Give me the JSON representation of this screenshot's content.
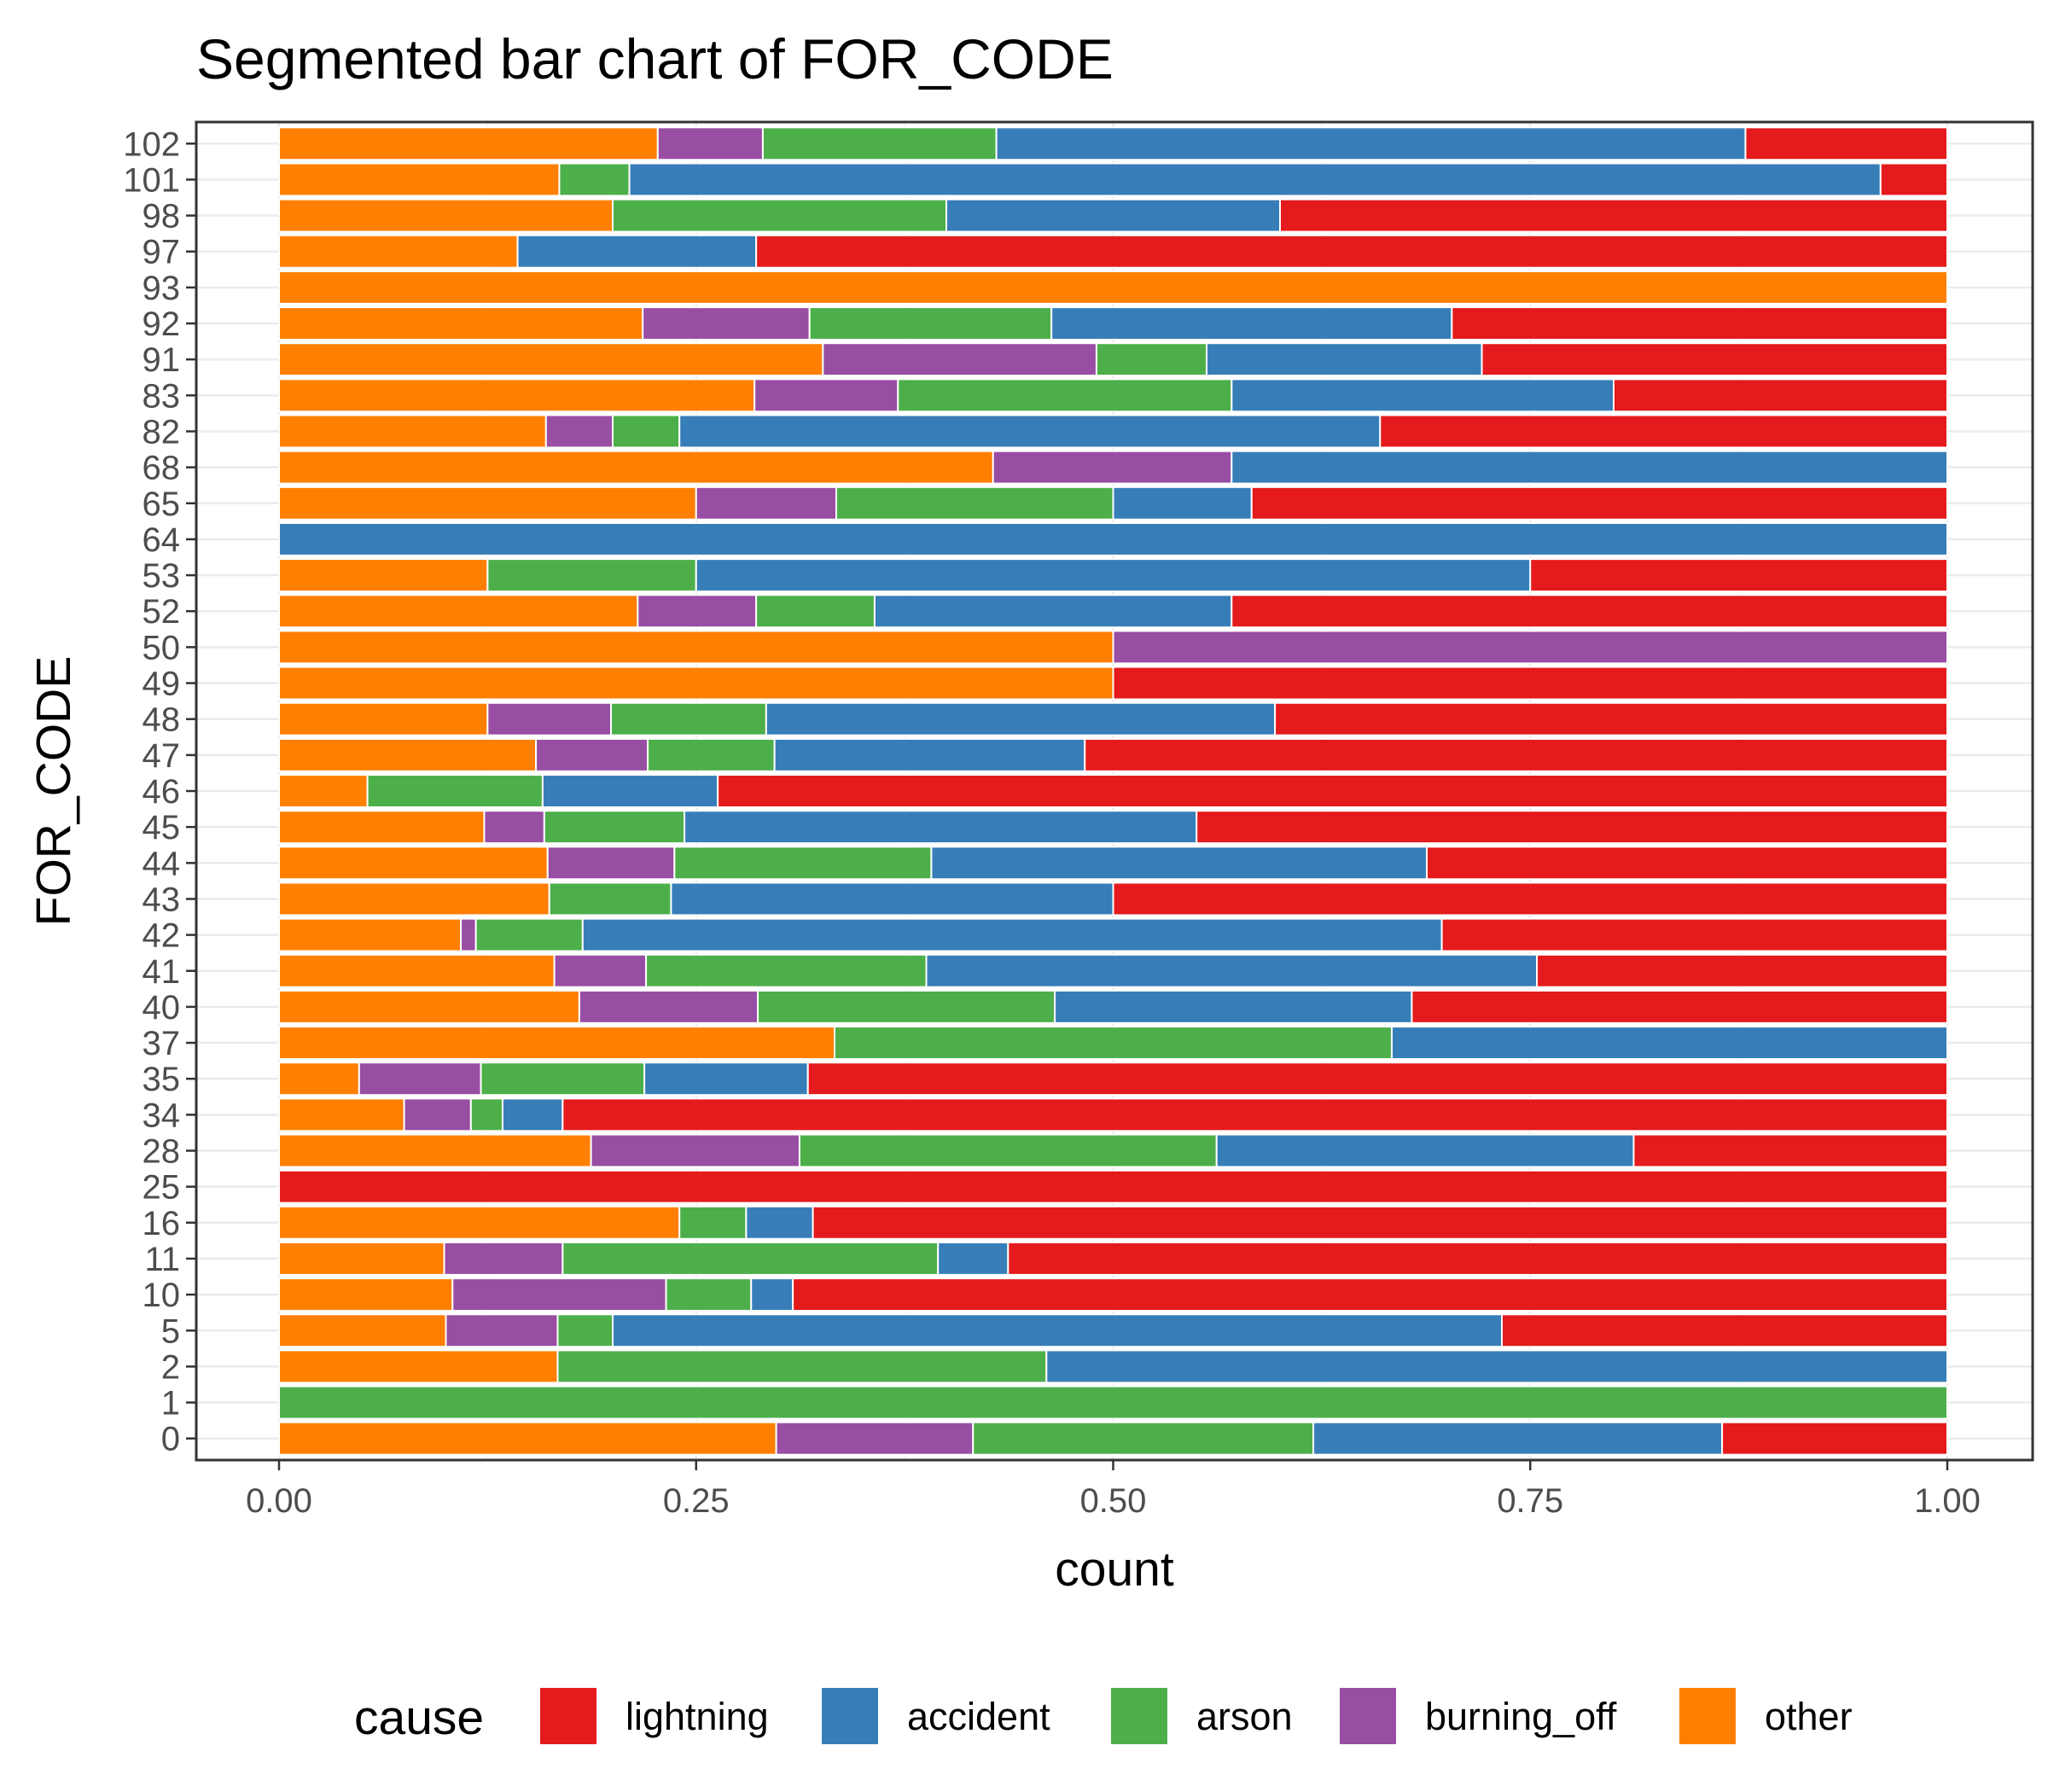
{
  "chart_data": {
    "type": "bar",
    "orientation": "horizontal",
    "stacked": "proportion",
    "title": "Segmented bar chart of FOR_CODE",
    "xlabel": "count",
    "ylabel": "FOR_CODE",
    "xlim": [
      0,
      1
    ],
    "x_ticks": [
      "0.00",
      "0.25",
      "0.50",
      "0.75",
      "1.00"
    ],
    "grid": true,
    "legend": {
      "title": "cause",
      "position": "bottom"
    },
    "categories": [
      "0",
      "1",
      "2",
      "5",
      "10",
      "11",
      "16",
      "25",
      "28",
      "34",
      "35",
      "37",
      "40",
      "41",
      "42",
      "43",
      "44",
      "45",
      "46",
      "47",
      "48",
      "49",
      "50",
      "52",
      "53",
      "64",
      "65",
      "68",
      "82",
      "83",
      "91",
      "92",
      "93",
      "97",
      "98",
      "101",
      "102"
    ],
    "stack_order": [
      "other",
      "burning_off",
      "arson",
      "accident",
      "lightning"
    ],
    "series": [
      {
        "name": "lightning",
        "color": "#e41a1c",
        "values": [
          0.135,
          0,
          0,
          0.267,
          0.692,
          0.563,
          0.68,
          1,
          0.188,
          0.83,
          0.683,
          0,
          0.321,
          0.246,
          0.303,
          0.5,
          0.312,
          0.45,
          0.737,
          0.517,
          0.403,
          0.5,
          0,
          0.429,
          0.25,
          0,
          0.417,
          0,
          0.34,
          0.2,
          0.279,
          0.297,
          0,
          0.714,
          0.4,
          0.04,
          0.121
        ]
      },
      {
        "name": "accident",
        "color": "#377eb8",
        "values": [
          0.245,
          0,
          0.54,
          0.533,
          0.025,
          0.042,
          0.04,
          0,
          0.25,
          0.036,
          0.098,
          0.333,
          0.214,
          0.366,
          0.515,
          0.265,
          0.297,
          0.307,
          0.105,
          0.186,
          0.305,
          0,
          0,
          0.214,
          0.5,
          1,
          0.083,
          0.429,
          0.42,
          0.229,
          0.165,
          0.24,
          0,
          0.143,
          0.2,
          0.75,
          0.449
        ]
      },
      {
        "name": "arson",
        "color": "#4daf4a",
        "values": [
          0.204,
          1,
          0.293,
          0.033,
          0.051,
          0.225,
          0.04,
          0,
          0.25,
          0.019,
          0.098,
          0.334,
          0.178,
          0.168,
          0.064,
          0.073,
          0.154,
          0.084,
          0.105,
          0.076,
          0.093,
          0,
          0,
          0.071,
          0.125,
          0,
          0.166,
          0,
          0.04,
          0.2,
          0.066,
          0.145,
          0,
          0,
          0.2,
          0.042,
          0.14
        ]
      },
      {
        "name": "burning_off",
        "color": "#984ea3",
        "values": [
          0.118,
          0,
          0,
          0.067,
          0.128,
          0.071,
          0,
          0,
          0.125,
          0.04,
          0.073,
          0,
          0.107,
          0.055,
          0.009,
          0,
          0.076,
          0.036,
          0,
          0.067,
          0.074,
          0,
          0.5,
          0.071,
          0,
          0,
          0.084,
          0.143,
          0.04,
          0.086,
          0.164,
          0.1,
          0,
          0,
          0,
          0,
          0.063
        ]
      },
      {
        "name": "other",
        "color": "#ff7f00",
        "values": [
          0.298,
          0,
          0.167,
          0.1,
          0.104,
          0.099,
          0.24,
          0,
          0.187,
          0.075,
          0.048,
          0.333,
          0.18,
          0.165,
          0.109,
          0.162,
          0.161,
          0.123,
          0.053,
          0.154,
          0.125,
          0.5,
          0.5,
          0.215,
          0.125,
          0,
          0.25,
          0.428,
          0.16,
          0.285,
          0.326,
          0.218,
          1,
          0.143,
          0.2,
          0.168,
          0.227
        ]
      }
    ]
  }
}
